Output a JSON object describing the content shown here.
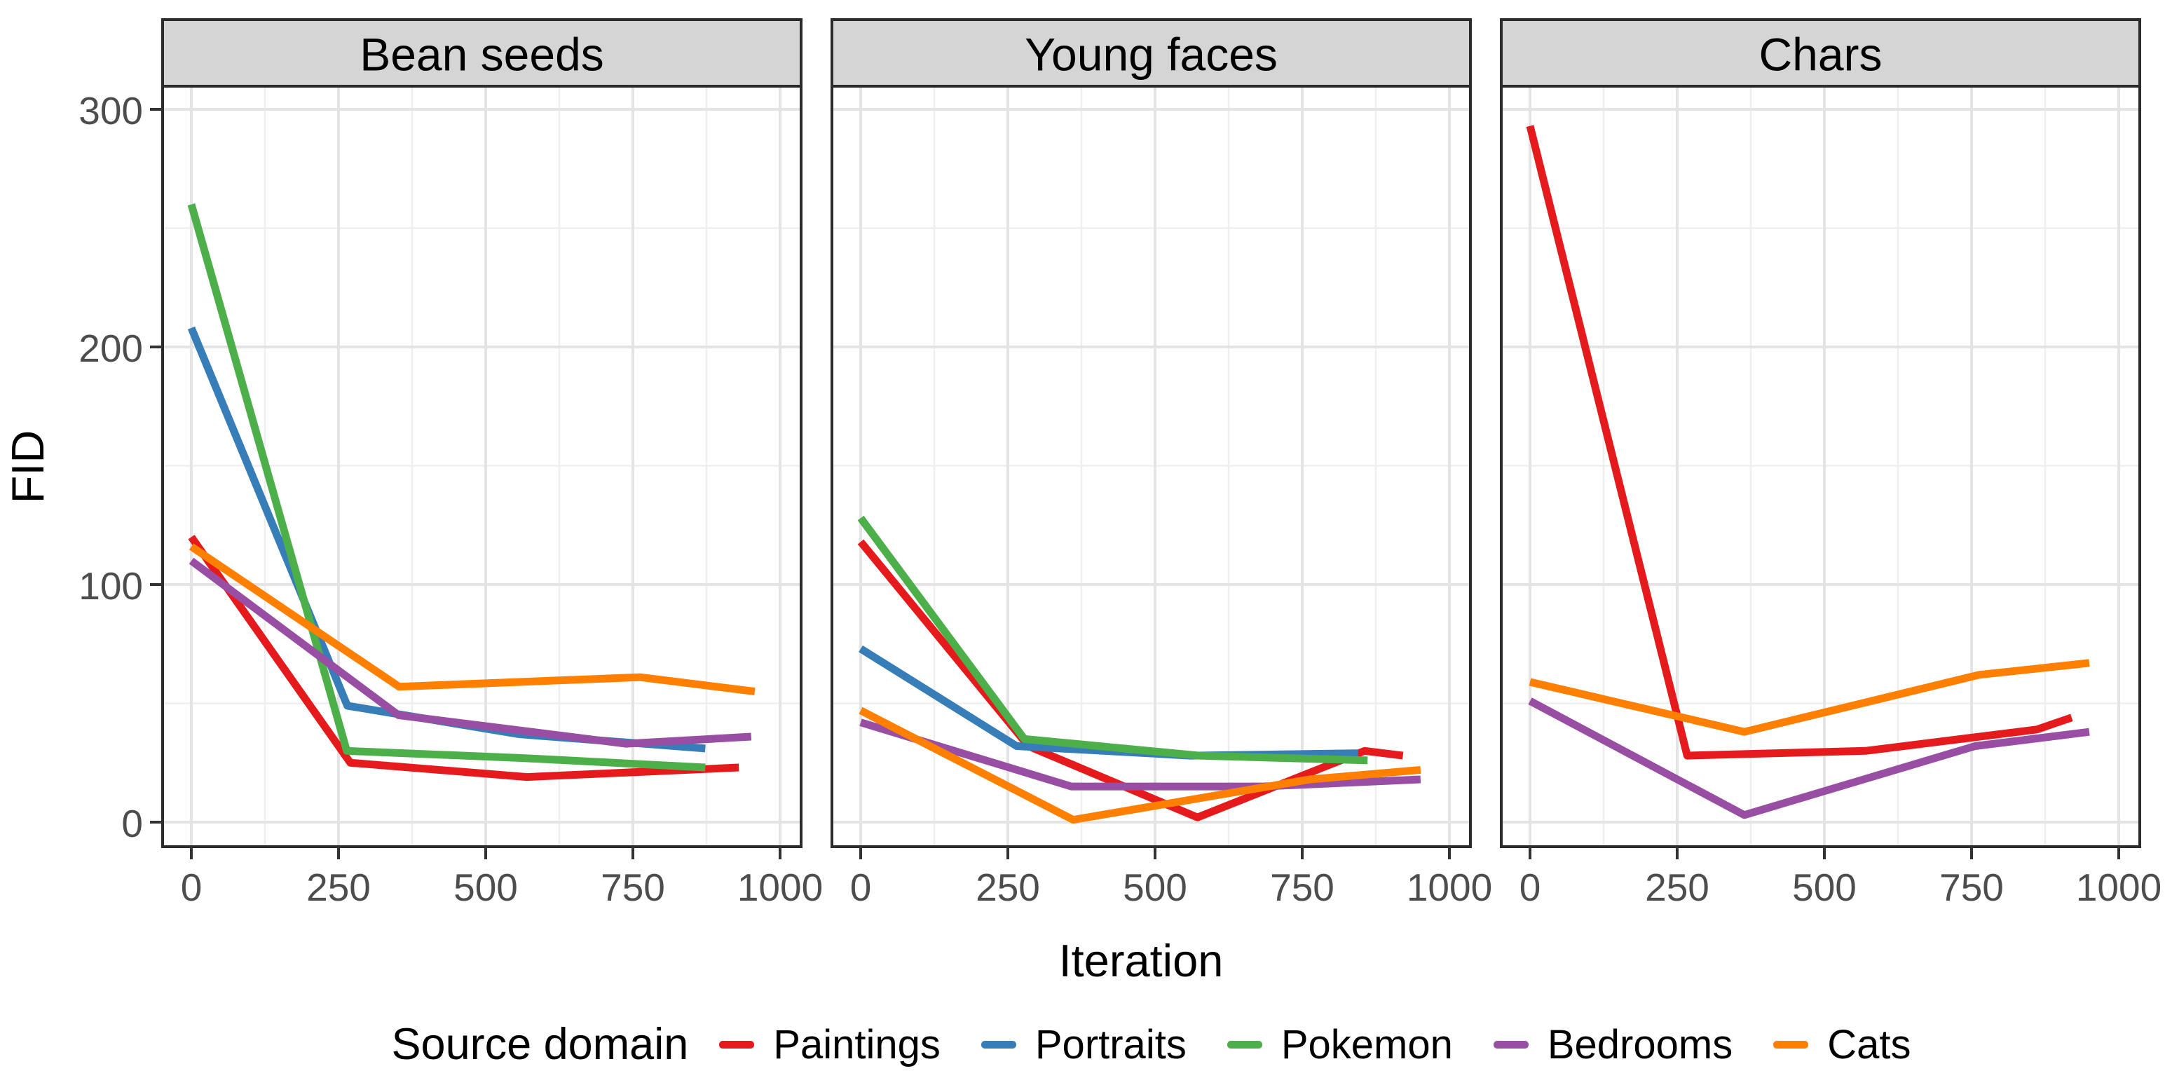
{
  "chart_data": {
    "type": "line",
    "title": "",
    "xlabel": "Iteration",
    "ylabel": "FID",
    "x_ticks": [
      0,
      250,
      500,
      750,
      1000
    ],
    "x_minor_ticks": [
      125,
      375,
      625,
      875
    ],
    "y_ticks": [
      0,
      100,
      200,
      300
    ],
    "y_minor_ticks": [
      50,
      150,
      250
    ],
    "xlim": [
      -50,
      1050
    ],
    "ylim": [
      -10,
      310
    ],
    "grid": "major+minor",
    "legend_position": "bottom",
    "legend_title": "Source domain",
    "domains": [
      {
        "name": "Paintings",
        "color": "#E41A1C"
      },
      {
        "name": "Portraits",
        "color": "#377EB8"
      },
      {
        "name": "Pokemon",
        "color": "#4DAF4A"
      },
      {
        "name": "Bedrooms",
        "color": "#984EA3"
      },
      {
        "name": "Cats",
        "color": "#FF7F00"
      }
    ],
    "facets": [
      {
        "title": "Bean seeds",
        "series": [
          {
            "domain": "Paintings",
            "points": [
              [
                0,
                120
              ],
              [
                270,
                25
              ],
              [
                570,
                19
              ],
              [
                930,
                23
              ]
            ]
          },
          {
            "domain": "Portraits",
            "points": [
              [
                0,
                208
              ],
              [
                265,
                49
              ],
              [
                557,
                37
              ],
              [
                873,
                31
              ]
            ]
          },
          {
            "domain": "Pokemon",
            "points": [
              [
                0,
                260
              ],
              [
                264,
                30
              ],
              [
                560,
                27
              ],
              [
                873,
                23
              ]
            ]
          },
          {
            "domain": "Bedrooms",
            "points": [
              [
                0,
                110
              ],
              [
                352,
                45
              ],
              [
                738,
                33
              ],
              [
                951,
                36
              ]
            ]
          },
          {
            "domain": "Cats",
            "points": [
              [
                0,
                116
              ],
              [
                353,
                57
              ],
              [
                762,
                61
              ],
              [
                957,
                55
              ]
            ]
          }
        ]
      },
      {
        "title": "Young faces",
        "series": [
          {
            "domain": "Paintings",
            "points": [
              [
                0,
                118
              ],
              [
                285,
                32
              ],
              [
                572,
                2
              ],
              [
                856,
                30
              ],
              [
                921,
                28
              ]
            ]
          },
          {
            "domain": "Portraits",
            "points": [
              [
                0,
                73
              ],
              [
                265,
                32
              ],
              [
                560,
                28
              ],
              [
                845,
                29
              ]
            ]
          },
          {
            "domain": "Pokemon",
            "points": [
              [
                0,
                128
              ],
              [
                278,
                35
              ],
              [
                575,
                28
              ],
              [
                861,
                26
              ]
            ]
          },
          {
            "domain": "Bedrooms",
            "points": [
              [
                0,
                42
              ],
              [
                358,
                15
              ],
              [
                683,
                15
              ],
              [
                951,
                18
              ]
            ]
          },
          {
            "domain": "Cats",
            "points": [
              [
                0,
                47
              ],
              [
                361,
                1
              ],
              [
                763,
                18
              ],
              [
                951,
                22
              ]
            ]
          }
        ]
      },
      {
        "title": "Chars",
        "series": [
          {
            "domain": "Paintings",
            "points": [
              [
                0,
                293
              ],
              [
                267,
                28
              ],
              [
                570,
                30
              ],
              [
                861,
                39
              ],
              [
                920,
                44
              ]
            ]
          },
          {
            "domain": "Bedrooms",
            "points": [
              [
                0,
                51
              ],
              [
                364,
                3
              ],
              [
                756,
                32
              ],
              [
                950,
                38
              ]
            ]
          },
          {
            "domain": "Cats",
            "points": [
              [
                0,
                59
              ],
              [
                364,
                38
              ],
              [
                763,
                62
              ],
              [
                950,
                67
              ]
            ]
          }
        ]
      }
    ],
    "style": {
      "strip_fill": "#D5D5D5",
      "panel_border": "#2b2b2b",
      "grid_major": "#E4E4E4",
      "grid_minor": "#EFEFEF",
      "tick_color": "#333333",
      "tick_text_color": "#4d4d4d",
      "line_width": 11
    }
  }
}
